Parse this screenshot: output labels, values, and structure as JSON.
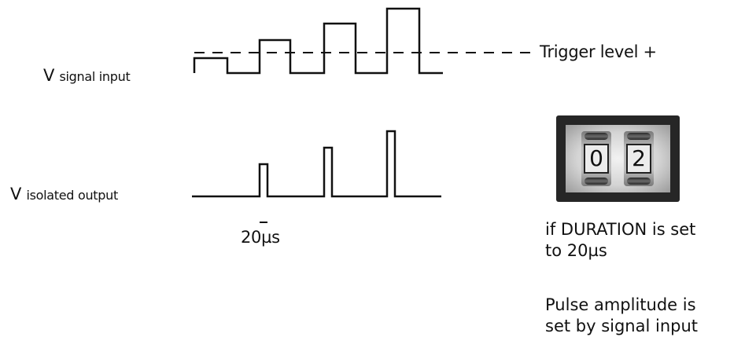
{
  "labels": {
    "signal_input_main": "V",
    "signal_input_sub": "signal input",
    "isolated_output_main": "V",
    "isolated_output_sub": "isolated output",
    "trigger_level": "Trigger level +",
    "pulse_width": "20µs"
  },
  "duration_switch": {
    "digits": [
      "0",
      "2"
    ]
  },
  "notes": {
    "duration_line1": "if DURATION is set",
    "duration_line2": "to 20µs",
    "amplitude_line1": "Pulse amplitude is",
    "amplitude_line2": "set by signal input"
  },
  "colors": {
    "line": "#111111",
    "switch_body": "#262626"
  }
}
